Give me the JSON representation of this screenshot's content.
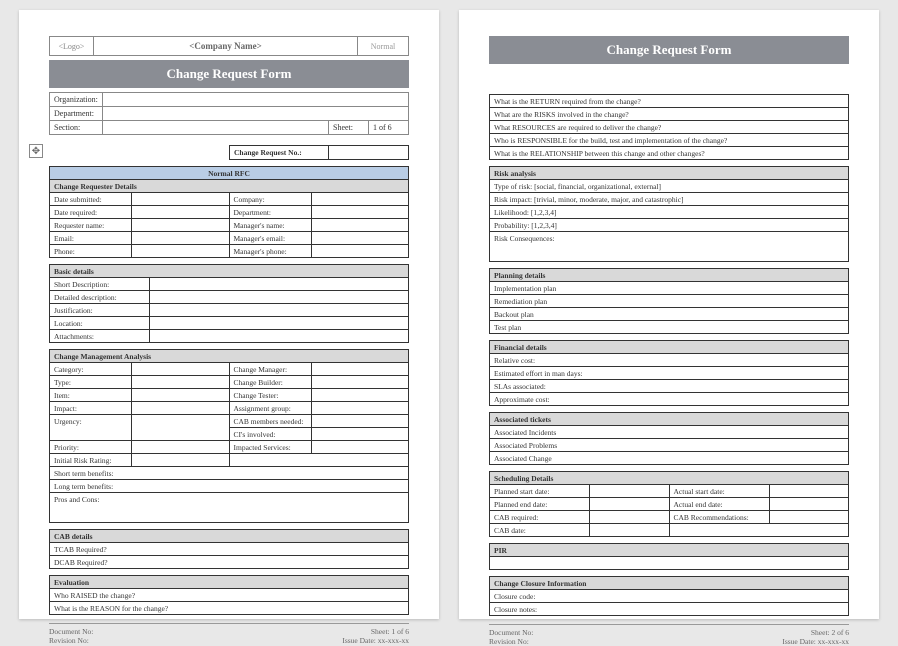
{
  "header": {
    "logo": "<Logo>",
    "company": "<Company Name>",
    "mode": "Normal",
    "title": "Change Request Form"
  },
  "meta": {
    "org_lbl": "Organization:",
    "dept_lbl": "Department:",
    "sect_lbl": "Section:",
    "sheet_lbl": "Sheet:",
    "sheet_val": "1 of 6"
  },
  "crno": {
    "lbl": "Change Request No.:"
  },
  "rfc_hdr": "Normal RFC",
  "requester": {
    "hdr": "Change Requester Details",
    "date_sub": "Date submitted:",
    "company": "Company:",
    "date_req": "Date required:",
    "dept": "Department:",
    "req_name": "Requester name:",
    "mgr_name": "Manager's name:",
    "email": "Email:",
    "mgr_email": "Manager's email:",
    "phone": "Phone:",
    "mgr_phone": "Manager's phone:"
  },
  "basic": {
    "hdr": "Basic details",
    "short": "Short Description:",
    "detailed": "Detailed description:",
    "just": "Justification:",
    "loc": "Location:",
    "att": "Attachments:"
  },
  "cma": {
    "hdr": "Change Management Analysis",
    "category": "Category:",
    "chg_mgr": "Change Manager:",
    "type": "Type:",
    "chg_bld": "Change Builder:",
    "item": "Item:",
    "chg_tst": "Change Tester:",
    "impact": "Impact:",
    "asg_grp": "Assignment group:",
    "cab_mem": "CAB members needed:",
    "urgency": "Urgency:",
    "cis": "CI's involved:",
    "priority": "Priority:",
    "imp_svc": "Impacted Services:",
    "risk": "Initial Risk Rating:",
    "stb": "Short term benefits:",
    "ltb": "Long term benefits:",
    "pros": "Pros and Cons:"
  },
  "cab": {
    "hdr": "CAB details",
    "tcab": "TCAB Required?",
    "dcab": "DCAB Required?"
  },
  "evaluation": {
    "hdr": "Evaluation",
    "raised": "Who RAISED the change?",
    "reason": "What is the REASON for the change?",
    "return": "What is the RETURN required from the change?",
    "risks": "What are the RISKS involved in the change?",
    "resources": "What RESOURCES are required to deliver the change?",
    "responsible": "Who is RESPONSIBLE for the build, test and implementation of the change?",
    "relationship": "What is the RELATIONSHIP between this change and other changes?"
  },
  "riskanalysis": {
    "hdr": "Risk analysis",
    "type": "Type of risk: [social, financial, organizational, external]",
    "impact": "Risk impact: [trivial, minor, moderate, major, and catastrophic]",
    "likelihood": "Likelihood: [1,2,3,4]",
    "probability": "Probability: [1,2,3,4]",
    "consequences": "Risk Consequences:"
  },
  "planning": {
    "hdr": "Planning details",
    "impl": "Implementation plan",
    "remed": "Remediation plan",
    "backout": "Backout plan",
    "test": "Test plan"
  },
  "financial": {
    "hdr": "Financial details",
    "relcost": "Relative cost:",
    "effort": "Estimated effort in man days:",
    "slas": "SLAs associated:",
    "approx": "Approximate cost:"
  },
  "tickets": {
    "hdr": "Associated tickets",
    "incidents": "Associated Incidents",
    "problems": "Associated Problems",
    "change": "Associated Change"
  },
  "scheduling": {
    "hdr": "Scheduling Details",
    "planned_start": "Planned start date:",
    "actual_start": "Actual start date:",
    "planned_end": "Planned end date:",
    "actual_end": "Actual end date:",
    "cab_req": "CAB required:",
    "cab_rec": "CAB Recommendations:",
    "cab_date": "CAB date:"
  },
  "pir": {
    "hdr": "PIR"
  },
  "closure": {
    "hdr": "Change Closure Information",
    "code": "Closure code:",
    "notes": "Closure notes:"
  },
  "footer": {
    "docno": "Document No:",
    "revno": "Revision No:",
    "sheet1": "Sheet: 1 of 6",
    "sheet2": "Sheet: 2 of 6",
    "issue": "Issue Date: xx-xxx-xx"
  }
}
